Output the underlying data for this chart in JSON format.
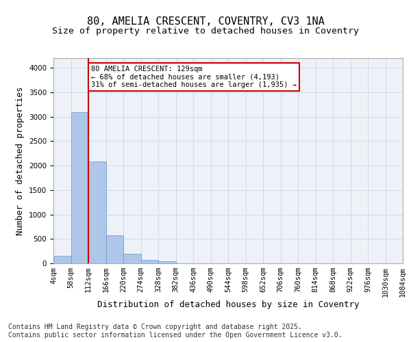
{
  "title_line1": "80, AMELIA CRESCENT, COVENTRY, CV3 1NA",
  "title_line2": "Size of property relative to detached houses in Coventry",
  "xlabel": "Distribution of detached houses by size in Coventry",
  "ylabel": "Number of detached properties",
  "bar_values": [
    150,
    3100,
    2080,
    580,
    200,
    65,
    45,
    0,
    0,
    0,
    0,
    0,
    0,
    0,
    0,
    0,
    0,
    0,
    0,
    0
  ],
  "bar_labels": [
    "4sqm",
    "58sqm",
    "112sqm",
    "166sqm",
    "220sqm",
    "274sqm",
    "328sqm",
    "382sqm",
    "436sqm",
    "490sqm",
    "544sqm",
    "598sqm",
    "652sqm",
    "706sqm",
    "760sqm",
    "814sqm",
    "868sqm",
    "922sqm",
    "976sqm",
    "1030sqm",
    "1084sqm"
  ],
  "bar_color": "#aec6e8",
  "bar_edge_color": "#5b9bd5",
  "vline_x": 2.0,
  "vline_color": "#cc0000",
  "annotation_box_text": "80 AMELIA CRESCENT: 129sqm\n← 68% of detached houses are smaller (4,193)\n31% of semi-detached houses are larger (1,935) →",
  "annotation_box_color": "#cc0000",
  "ylim": [
    0,
    4200
  ],
  "yticks": [
    0,
    500,
    1000,
    1500,
    2000,
    2500,
    3000,
    3500,
    4000
  ],
  "grid_color": "#d0d8e8",
  "bg_color": "#eef2f8",
  "footer_text": "Contains HM Land Registry data © Crown copyright and database right 2025.\nContains public sector information licensed under the Open Government Licence v3.0.",
  "title_fontsize": 11,
  "title2_fontsize": 9.5,
  "xlabel_fontsize": 9,
  "ylabel_fontsize": 9,
  "tick_fontsize": 7.5,
  "footer_fontsize": 7
}
